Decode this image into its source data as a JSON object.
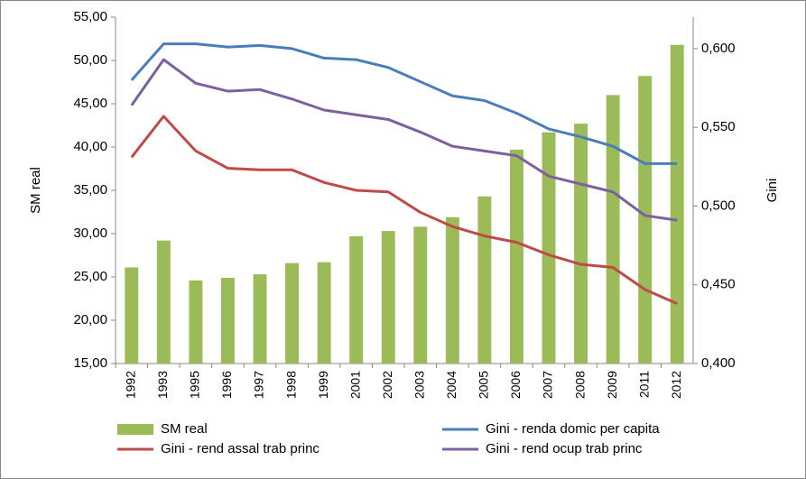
{
  "chart_data": {
    "type": "combo",
    "ylabel": "SM real",
    "y2label": "Gini",
    "categories": [
      "1992",
      "1993",
      "1995",
      "1996",
      "1997",
      "1998",
      "1999",
      "2001",
      "2002",
      "2003",
      "2004",
      "2005",
      "2006",
      "2007",
      "2008",
      "2009",
      "2011",
      "2012"
    ],
    "ylim": [
      15,
      55
    ],
    "yticks": [
      {
        "value": 15,
        "label": "15,00"
      },
      {
        "value": 20,
        "label": "20,00"
      },
      {
        "value": 25,
        "label": "25,00"
      },
      {
        "value": 30,
        "label": "30,00"
      },
      {
        "value": 35,
        "label": "35,00"
      },
      {
        "value": 40,
        "label": "40,00"
      },
      {
        "value": 45,
        "label": "45,00"
      },
      {
        "value": 50,
        "label": "50,00"
      },
      {
        "value": 55,
        "label": "55,00"
      }
    ],
    "y2lim": [
      0.4,
      0.62
    ],
    "y2ticks": [
      {
        "value": 0.4,
        "label": "0,400"
      },
      {
        "value": 0.45,
        "label": "0,450"
      },
      {
        "value": 0.5,
        "label": "0,500"
      },
      {
        "value": 0.55,
        "label": "0,550"
      },
      {
        "value": 0.6,
        "label": "0,600"
      }
    ],
    "series": [
      {
        "name": "SM real",
        "type": "bar",
        "color": "#9bbb59",
        "values": [
          26.1,
          29.2,
          24.6,
          24.9,
          25.3,
          26.6,
          26.7,
          29.7,
          30.3,
          30.8,
          31.9,
          34.3,
          39.7,
          41.7,
          42.7,
          46.0,
          48.2,
          51.8
        ]
      },
      {
        "name": "Gini - renda domic per capita",
        "type": "line",
        "axis": "y2",
        "color": "#4a7ebb",
        "values": [
          0.58,
          0.603,
          0.603,
          0.601,
          0.602,
          0.6,
          0.594,
          0.593,
          0.588,
          0.579,
          0.57,
          0.567,
          0.559,
          0.549,
          0.544,
          0.538,
          0.527,
          0.527
        ]
      },
      {
        "name": "Gini - rend assal trab princ",
        "type": "line",
        "axis": "y2",
        "color": "#be4b48",
        "values": [
          0.531,
          0.557,
          0.535,
          0.524,
          0.523,
          0.523,
          0.515,
          0.51,
          0.509,
          0.496,
          0.487,
          0.481,
          0.477,
          0.469,
          0.463,
          0.461,
          0.447,
          0.438
        ]
      },
      {
        "name": "Gini - rend ocup trab princ",
        "type": "line",
        "axis": "y2",
        "color": "#7d60a0",
        "values": [
          0.564,
          0.593,
          0.578,
          0.573,
          0.574,
          0.568,
          0.561,
          0.558,
          0.555,
          0.547,
          0.538,
          0.535,
          0.532,
          0.519,
          0.514,
          0.509,
          0.494,
          0.491
        ]
      }
    ]
  }
}
